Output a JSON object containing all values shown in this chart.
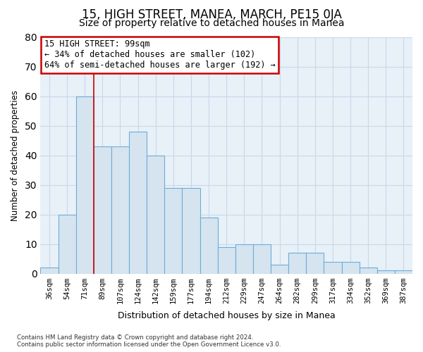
{
  "title": "15, HIGH STREET, MANEA, MARCH, PE15 0JA",
  "subtitle": "Size of property relative to detached houses in Manea",
  "xlabel": "Distribution of detached houses by size in Manea",
  "ylabel": "Number of detached properties",
  "bar_labels": [
    "36sqm",
    "54sqm",
    "71sqm",
    "89sqm",
    "107sqm",
    "124sqm",
    "142sqm",
    "159sqm",
    "177sqm",
    "194sqm",
    "212sqm",
    "229sqm",
    "247sqm",
    "264sqm",
    "282sqm",
    "299sqm",
    "317sqm",
    "334sqm",
    "352sqm",
    "369sqm",
    "387sqm"
  ],
  "bar_heights": [
    2,
    20,
    60,
    43,
    43,
    48,
    40,
    29,
    29,
    19,
    9,
    10,
    10,
    3,
    7,
    7,
    4,
    4,
    2,
    1,
    1
  ],
  "bar_color": "#d6e4f0",
  "bar_edge_color": "#6aaed6",
  "annotation_box_text": "15 HIGH STREET: 99sqm\n← 34% of detached houses are smaller (102)\n64% of semi-detached houses are larger (192) →",
  "annotation_box_edge_color": "#cc0000",
  "annotation_box_facecolor": "white",
  "vertical_line_x": 3,
  "vertical_line_color": "#cc0000",
  "ylim": [
    0,
    80
  ],
  "yticks": [
    0,
    10,
    20,
    30,
    40,
    50,
    60,
    70,
    80
  ],
  "background_color": "#ffffff",
  "plot_bg_color": "#e8f0f8",
  "grid_color": "#c8d8e8",
  "title_fontsize": 12,
  "subtitle_fontsize": 10,
  "footer_text": "Contains HM Land Registry data © Crown copyright and database right 2024.\nContains public sector information licensed under the Open Government Licence v3.0."
}
